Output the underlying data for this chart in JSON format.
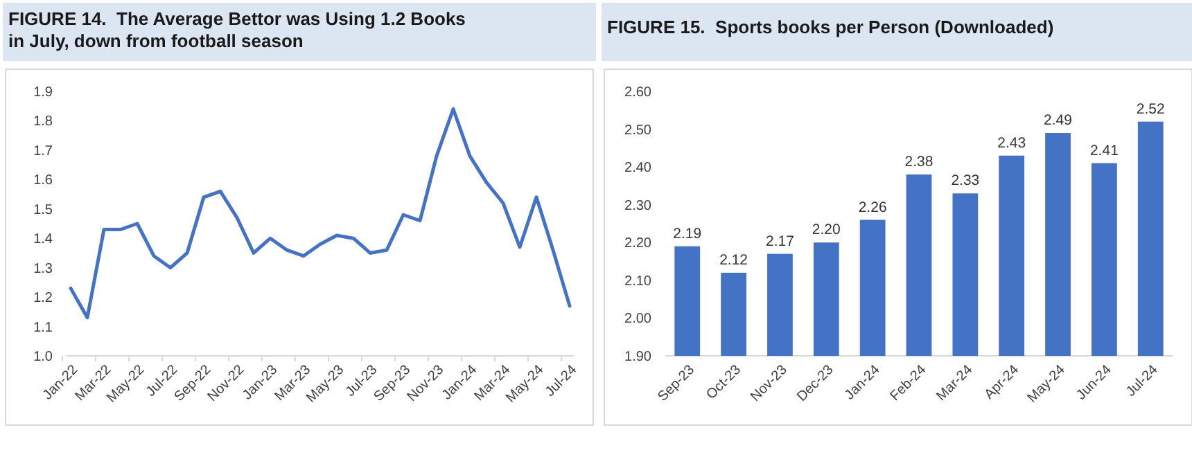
{
  "chart_data": [
    {
      "type": "line",
      "title": "FIGURE 14.  The Average Bettor was Using 1.2 Books in July, down from football season",
      "categories": [
        "Jan-22",
        null,
        "Mar-22",
        null,
        "May-22",
        null,
        "Jul-22",
        null,
        "Sep-22",
        null,
        "Nov-22",
        null,
        "Jan-23",
        null,
        "Mar-23",
        null,
        "May-23",
        null,
        "Jul-23",
        null,
        "Sep-23",
        null,
        "Nov-23",
        null,
        "Jan-24",
        null,
        "Mar-24",
        null,
        "May-24",
        null,
        "Jul-24"
      ],
      "series": [
        {
          "color": "#4472c4",
          "values": [
            1.23,
            1.13,
            1.43,
            1.43,
            1.45,
            1.34,
            1.3,
            1.35,
            1.54,
            1.56,
            1.47,
            1.35,
            1.4,
            1.36,
            1.34,
            1.38,
            1.41,
            1.4,
            1.35,
            1.36,
            1.48,
            1.46,
            1.68,
            1.84,
            1.68,
            1.59,
            1.52,
            1.37,
            1.54,
            1.36,
            1.17
          ]
        }
      ],
      "ylim": [
        1.0,
        1.9
      ],
      "yticks": [
        {
          "value": 1.0,
          "label": "1.0"
        },
        1.1,
        1.2,
        1.3,
        1.4,
        1.5,
        1.6,
        1.7,
        1.8,
        1.9
      ],
      "grid": false,
      "marker": "none",
      "line_style": "solid"
    },
    {
      "type": "bar",
      "title": "FIGURE 15.  Sports books per Person (Downloaded)",
      "categories": [
        "Sep-23",
        "Oct-23",
        "Nov-23",
        "Dec-23",
        "Jan-24",
        "Feb-24",
        "Mar-24",
        "Apr-24",
        "May-24",
        "Jun-24",
        "Jul-24"
      ],
      "values": [
        2.19,
        2.12,
        2.17,
        2.2,
        2.26,
        2.38,
        2.33,
        2.43,
        2.49,
        2.41,
        2.52
      ],
      "color": "#4472c4",
      "value_labels": [
        "2.19",
        "2.12",
        "2.17",
        "2.20",
        "2.26",
        "2.38",
        "2.33",
        "2.43",
        "2.49",
        "2.41",
        "2.52"
      ],
      "ylim": [
        1.9,
        2.6
      ],
      "yticks": [
        {
          "value": 1.9,
          "label": "1.90"
        },
        {
          "value": 2.0,
          "label": "2.00"
        },
        {
          "value": 2.1,
          "label": "2.10"
        },
        {
          "value": 2.2,
          "label": "2.20"
        },
        {
          "value": 2.3,
          "label": "2.30"
        },
        {
          "value": 2.4,
          "label": "2.40"
        },
        {
          "value": 2.5,
          "label": "2.50"
        },
        {
          "value": 2.6,
          "label": "2.60"
        }
      ],
      "grid": false
    }
  ]
}
